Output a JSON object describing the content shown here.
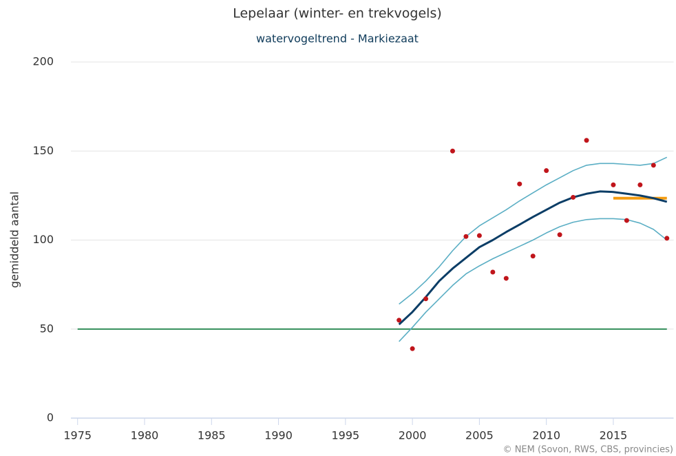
{
  "chart_data": {
    "type": "line",
    "title": "Lepelaar (winter- en trekvogels)",
    "subtitle": "watervogeltrend - Markiezaat",
    "y_label": "gemiddeld aantal",
    "credits": "© NEM (Sovon, RWS, CBS, provincies)",
    "x": [
      1999,
      2000,
      2001,
      2002,
      2003,
      2004,
      2005,
      2006,
      2007,
      2008,
      2009,
      2010,
      2011,
      2012,
      2013,
      2014,
      2015,
      2016,
      2017,
      2018,
      2019
    ],
    "series": [
      {
        "kind": "line",
        "color": "#5aaec4",
        "width": 1.6,
        "values": [
          64,
          70,
          77,
          85,
          94,
          102,
          108,
          112.5,
          117,
          122,
          126.5,
          131,
          135,
          139,
          142,
          143,
          143,
          142.5,
          142,
          143,
          146.5
        ]
      },
      {
        "kind": "line",
        "color": "#5aaec4",
        "width": 1.6,
        "values": [
          43,
          51,
          59.5,
          67,
          74.5,
          81,
          85.5,
          89.5,
          93,
          96.5,
          100,
          104,
          107.5,
          110,
          111.5,
          112,
          112,
          111.5,
          109.5,
          106,
          100
        ]
      },
      {
        "kind": "line",
        "color": "#0b3d66",
        "width": 3,
        "values": [
          52.6,
          59.6,
          68,
          77,
          84,
          90,
          96,
          100,
          104.5,
          108.7,
          113,
          117,
          121,
          124,
          126,
          127.3,
          127,
          126,
          125,
          123.5,
          121.5
        ]
      },
      {
        "kind": "scatter",
        "color": "#c0151b",
        "values": [
          55,
          39,
          67,
          null,
          150,
          102,
          102.5,
          82,
          78.5,
          131.5,
          91,
          139,
          103,
          124,
          156,
          null,
          131,
          111,
          131,
          142,
          101
        ]
      }
    ],
    "reference_lines": [
      {
        "value": 50,
        "x": [
          1975,
          2019
        ],
        "color": "#2e8b57",
        "width": 2
      },
      {
        "value": 123.5,
        "x": [
          2015,
          2019
        ],
        "color": "#f39c12",
        "width": 4
      }
    ],
    "xlim": [
      1974.5,
      2019.5
    ],
    "xticks": [
      1975,
      1980,
      1985,
      1990,
      1995,
      2000,
      2005,
      2010,
      2015
    ],
    "ylim": [
      0,
      200
    ],
    "yticks": [
      0,
      50,
      100,
      150,
      200
    ],
    "grid": true
  }
}
